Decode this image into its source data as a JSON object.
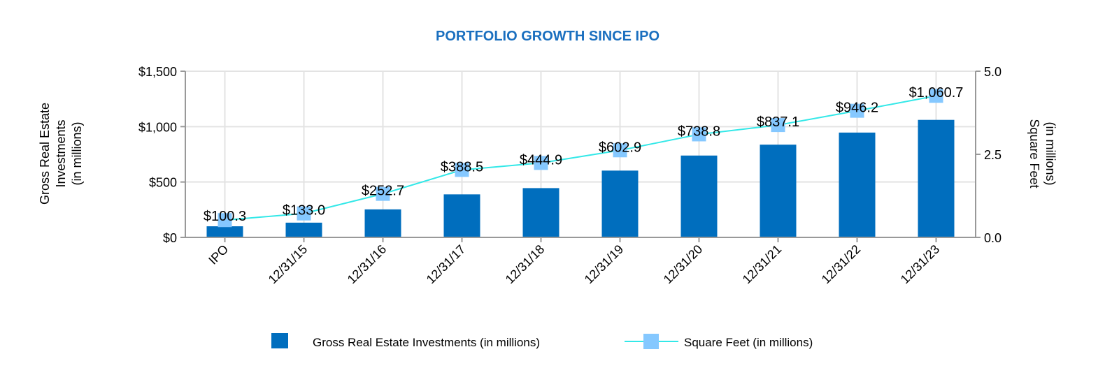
{
  "chart_data": {
    "type": "bar+line",
    "title": "PORTFOLIO GROWTH SINCE IPO",
    "categories": [
      "IPO",
      "12/31/15",
      "12/31/16",
      "12/31/17",
      "12/31/18",
      "12/31/19",
      "12/31/20",
      "12/31/21",
      "12/31/22",
      "12/31/23"
    ],
    "series": [
      {
        "name": "Gross Real Estate Investments (in millions)",
        "type": "bar",
        "axis": "left",
        "values": [
          100.3,
          133.0,
          252.7,
          388.5,
          444.9,
          602.9,
          738.8,
          837.1,
          946.2,
          1060.7
        ],
        "labels": [
          "$100.3",
          "$133.0",
          "$252.7",
          "$388.5",
          "$444.9",
          "$602.9",
          "$738.8",
          "$837.1",
          "$946.2",
          "$1,060.7"
        ],
        "color": "#006EBE"
      },
      {
        "name": "Square Feet (in millions)",
        "type": "line",
        "axis": "right",
        "values": [
          0.52,
          0.72,
          1.31,
          2.03,
          2.24,
          2.62,
          3.1,
          3.38,
          3.81,
          4.26
        ],
        "color": "#33E8E8",
        "marker_color": "#85C8FF"
      }
    ],
    "ylabel_left": "Gross Real Estate Investments (in millions)",
    "ylabel_left_lines": [
      "Gross Real Estate",
      "Investments",
      "(in millions)"
    ],
    "ylabel_right_lines": [
      "Square Feet",
      "(in millions)"
    ],
    "ylim_left": [
      0,
      1500
    ],
    "ylim_right": [
      0,
      5.0
    ],
    "yticks_left": [
      "$0",
      "$500",
      "$1,000",
      "$1,500"
    ],
    "yticks_right": [
      "0.0",
      "2.5",
      "5.0"
    ],
    "grid": true,
    "legend_position": "bottom",
    "title_color": "#1A6FBF"
  }
}
